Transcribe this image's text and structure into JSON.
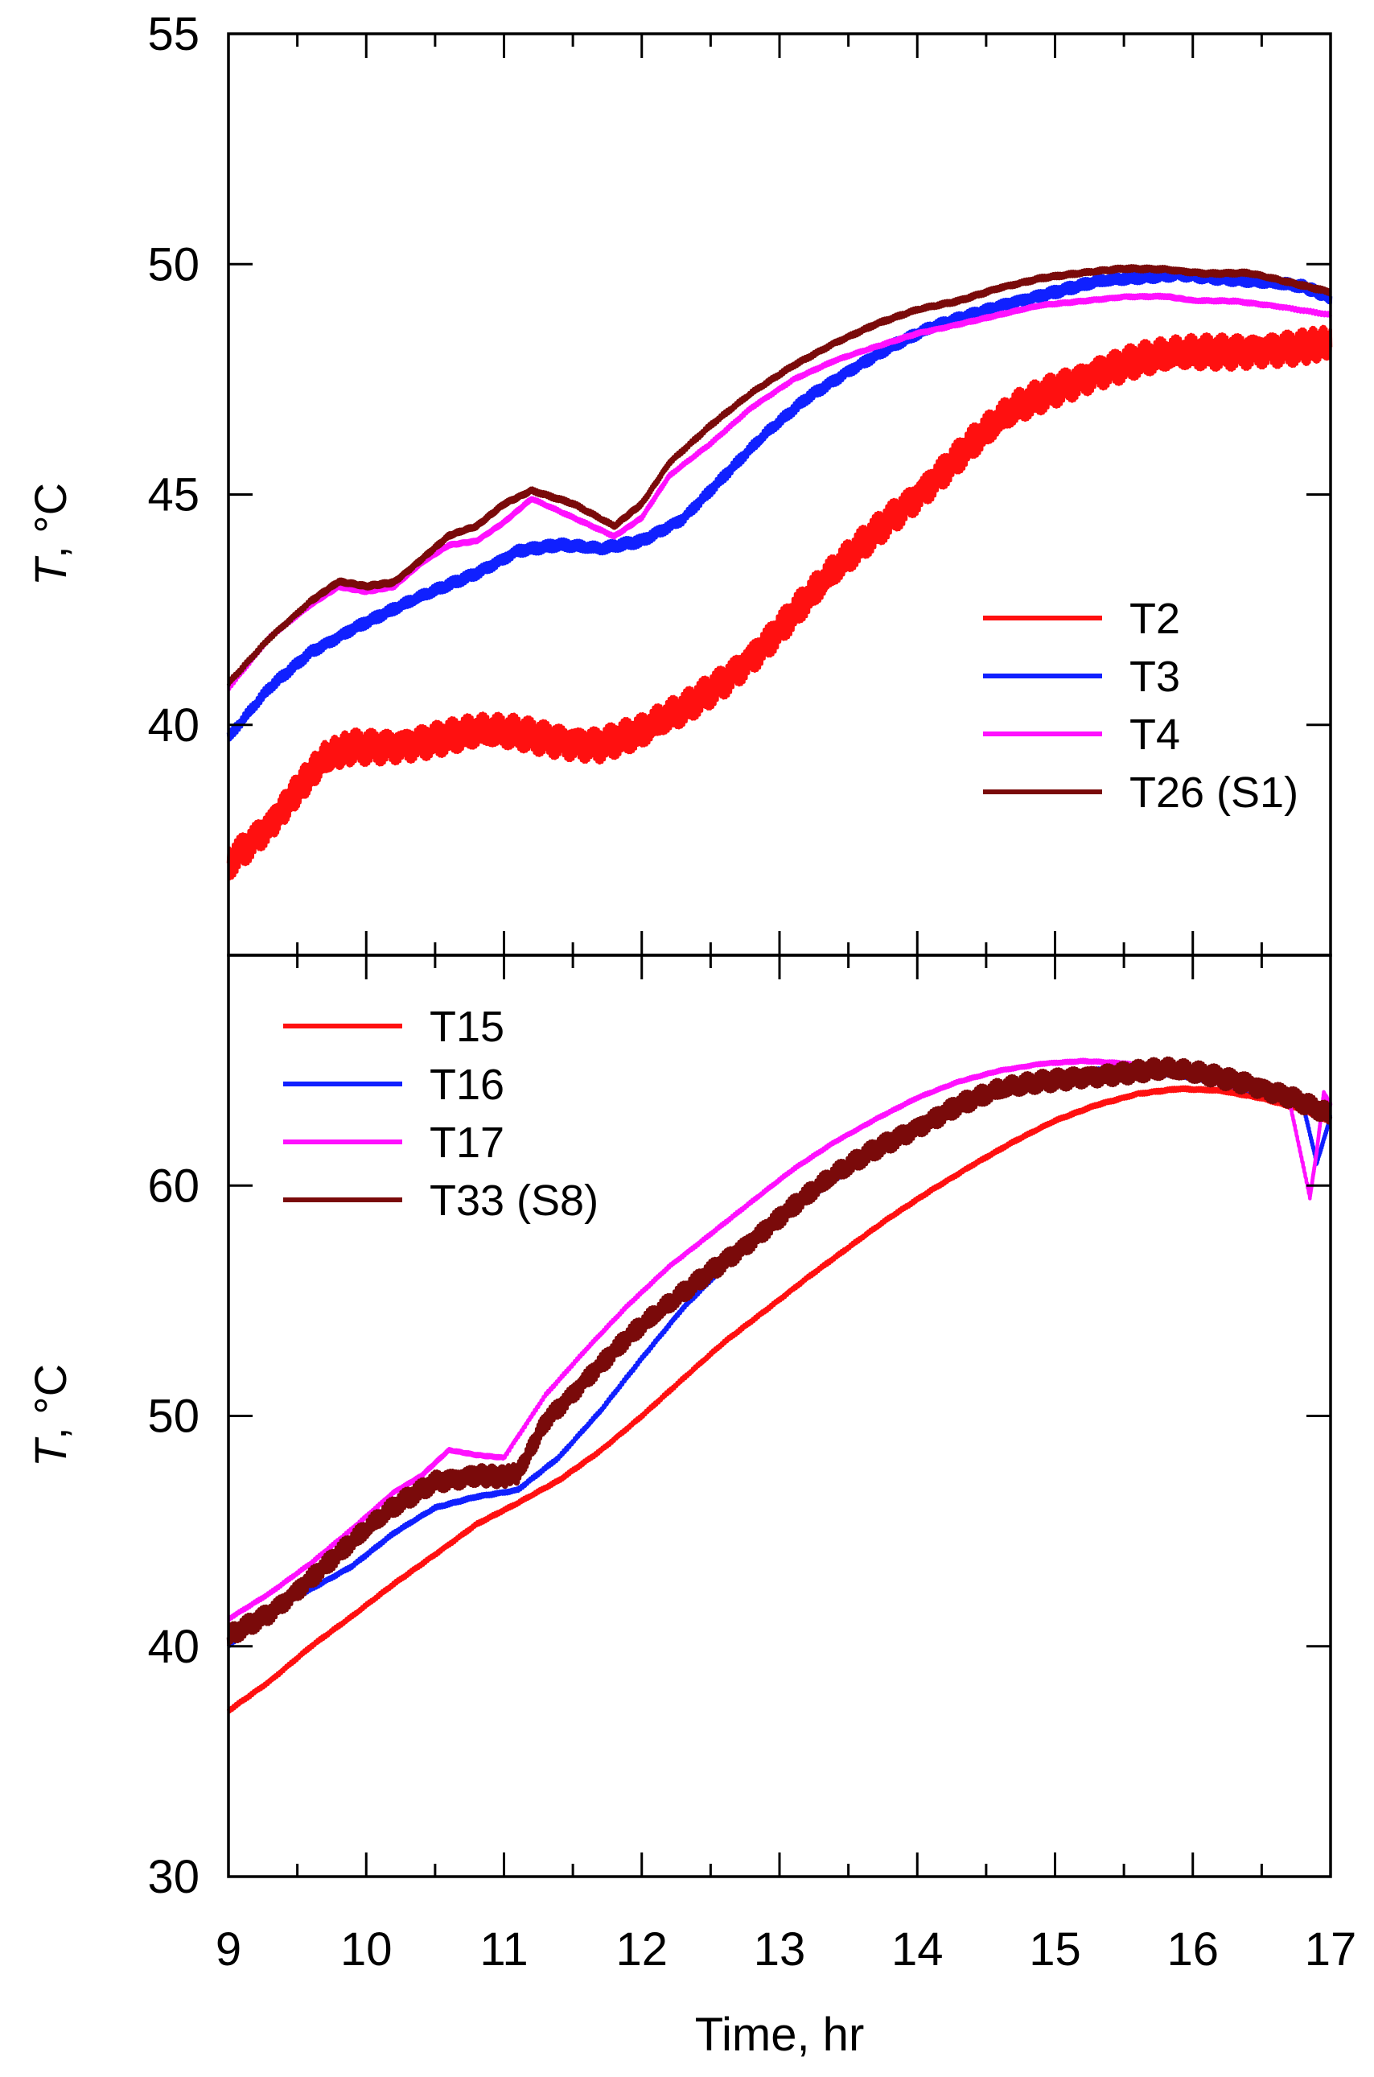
{
  "chart_data": [
    {
      "type": "line",
      "panel": "top",
      "title": "",
      "xlabel": "",
      "ylabel_italic": "T",
      "ylabel_rest": ", °C",
      "xlim": [
        9,
        17
      ],
      "ylim": [
        35,
        55
      ],
      "yticks": [
        40,
        45,
        50,
        55
      ],
      "ytick_labels": [
        "40",
        "45",
        "50",
        "55"
      ],
      "legend_position": "lower-right",
      "series": [
        {
          "name": "T2",
          "color": "#ff1010",
          "noise": 0.45,
          "x": [
            9.0,
            9.3,
            9.5,
            9.7,
            9.9,
            10.2,
            10.5,
            10.8,
            11.1,
            11.4,
            11.7,
            12.0,
            12.3,
            12.6,
            12.9,
            13.2,
            13.5,
            13.8,
            14.1,
            14.4,
            14.7,
            15.0,
            15.3,
            15.6,
            15.9,
            16.2,
            16.5,
            16.8,
            17.0
          ],
          "values": [
            37.0,
            37.9,
            38.6,
            39.2,
            39.5,
            39.6,
            39.7,
            39.8,
            39.8,
            39.7,
            39.6,
            39.8,
            40.3,
            41.0,
            41.8,
            42.7,
            43.6,
            44.5,
            45.3,
            46.1,
            46.8,
            47.3,
            47.7,
            47.9,
            48.0,
            48.1,
            48.2,
            48.2,
            48.2
          ]
        },
        {
          "name": "T3",
          "color": "#1020ff",
          "noise": 0.15,
          "x": [
            9.0,
            9.3,
            9.6,
            9.9,
            10.2,
            10.5,
            10.8,
            11.1,
            11.4,
            11.7,
            12.0,
            12.3,
            12.6,
            12.9,
            13.2,
            13.5,
            13.8,
            14.1,
            14.4,
            14.7,
            15.0,
            15.3,
            15.6,
            15.9,
            16.2,
            16.5,
            16.8,
            17.0
          ],
          "values": [
            39.7,
            40.8,
            41.6,
            42.1,
            42.5,
            42.9,
            43.3,
            43.8,
            43.9,
            43.8,
            44.0,
            44.5,
            45.4,
            46.3,
            47.1,
            47.7,
            48.2,
            48.6,
            48.9,
            49.2,
            49.4,
            49.6,
            49.7,
            49.8,
            49.7,
            49.6,
            49.5,
            49.3
          ]
        },
        {
          "name": "T4",
          "color": "#ff10ff",
          "noise": 0.05,
          "x": [
            9.0,
            9.3,
            9.6,
            9.8,
            10.0,
            10.2,
            10.4,
            10.6,
            10.8,
            11.0,
            11.2,
            11.5,
            11.8,
            12.0,
            12.2,
            12.5,
            12.8,
            13.1,
            13.4,
            13.7,
            14.0,
            14.3,
            14.6,
            14.9,
            15.2,
            15.5,
            15.8,
            16.0,
            16.3,
            16.6,
            17.0
          ],
          "values": [
            40.8,
            41.9,
            42.6,
            43.0,
            42.9,
            43.0,
            43.5,
            43.9,
            44.0,
            44.4,
            44.9,
            44.5,
            44.1,
            44.5,
            45.4,
            46.1,
            46.9,
            47.5,
            47.9,
            48.2,
            48.5,
            48.7,
            48.9,
            49.1,
            49.2,
            49.3,
            49.3,
            49.2,
            49.2,
            49.1,
            48.9
          ]
        },
        {
          "name": "T26 (S1)",
          "color": "#7a0a0a",
          "noise": 0.07,
          "x": [
            9.0,
            9.3,
            9.6,
            9.8,
            10.0,
            10.2,
            10.4,
            10.6,
            10.8,
            11.0,
            11.2,
            11.5,
            11.8,
            12.0,
            12.2,
            12.5,
            12.8,
            13.1,
            13.4,
            13.7,
            14.0,
            14.3,
            14.6,
            14.9,
            15.2,
            15.5,
            15.8,
            16.1,
            16.4,
            16.7,
            17.0
          ],
          "values": [
            40.9,
            41.9,
            42.7,
            43.1,
            43.0,
            43.1,
            43.6,
            44.1,
            44.3,
            44.8,
            45.1,
            44.8,
            44.3,
            44.8,
            45.7,
            46.5,
            47.2,
            47.8,
            48.3,
            48.7,
            49.0,
            49.2,
            49.5,
            49.7,
            49.8,
            49.9,
            49.9,
            49.8,
            49.8,
            49.6,
            49.4
          ]
        }
      ]
    },
    {
      "type": "line",
      "panel": "bottom",
      "title": "",
      "xlabel": "Time, hr",
      "ylabel_italic": "T",
      "ylabel_rest": ", °C",
      "xlim": [
        9,
        17
      ],
      "ylim": [
        30,
        70
      ],
      "xticks": [
        9,
        10,
        11,
        12,
        13,
        14,
        15,
        16,
        17
      ],
      "xtick_labels": [
        "9",
        "10",
        "11",
        "12",
        "13",
        "14",
        "15",
        "16",
        "17"
      ],
      "yticks": [
        30,
        40,
        50,
        60
      ],
      "ytick_labels": [
        "30",
        "40",
        "50",
        "60"
      ],
      "legend_position": "top-left",
      "series": [
        {
          "name": "T15",
          "color": "#ff1010",
          "noise": 0.1,
          "x": [
            9.0,
            9.3,
            9.6,
            9.9,
            10.2,
            10.5,
            10.8,
            11.1,
            11.4,
            11.7,
            12.0,
            12.3,
            12.6,
            12.9,
            13.2,
            13.5,
            13.8,
            14.1,
            14.4,
            14.7,
            15.0,
            15.3,
            15.6,
            15.9,
            16.2,
            16.5,
            16.8,
            17.0
          ],
          "values": [
            37.2,
            38.5,
            40.0,
            41.3,
            42.7,
            44.0,
            45.3,
            46.2,
            47.2,
            48.5,
            50.0,
            51.6,
            53.2,
            54.6,
            56.0,
            57.3,
            58.6,
            59.8,
            60.9,
            61.9,
            62.8,
            63.5,
            64.0,
            64.2,
            64.1,
            63.8,
            63.3,
            62.8
          ]
        },
        {
          "name": "T16",
          "color": "#1020ff",
          "noise": 0.1,
          "x": [
            9.0,
            9.3,
            9.6,
            9.9,
            10.2,
            10.5,
            10.8,
            11.1,
            11.4,
            11.7,
            12.0,
            12.3,
            12.6,
            12.9,
            13.2,
            13.5,
            13.8,
            14.1,
            14.4,
            14.7,
            15.0,
            15.3,
            15.6,
            15.9,
            16.2,
            16.5,
            16.8,
            16.9,
            17.0
          ],
          "values": [
            40.0,
            41.5,
            42.5,
            43.5,
            44.9,
            46.0,
            46.5,
            46.8,
            48.2,
            50.2,
            52.5,
            54.7,
            56.5,
            58.0,
            59.4,
            60.7,
            61.9,
            62.9,
            63.7,
            64.3,
            64.7,
            65.0,
            65.0,
            64.8,
            64.5,
            64.0,
            63.5,
            61.0,
            63.0
          ]
        },
        {
          "name": "T17",
          "color": "#ff10ff",
          "noise": 0.08,
          "x": [
            9.0,
            9.3,
            9.6,
            9.9,
            10.2,
            10.4,
            10.6,
            10.8,
            11.0,
            11.3,
            11.6,
            11.9,
            12.2,
            12.5,
            12.8,
            13.1,
            13.4,
            13.7,
            14.0,
            14.3,
            14.6,
            14.9,
            15.2,
            15.5,
            15.8,
            16.1,
            16.4,
            16.7,
            16.85,
            16.9,
            16.95,
            17.0
          ],
          "values": [
            41.2,
            42.3,
            43.6,
            45.1,
            46.7,
            47.4,
            48.5,
            48.3,
            48.2,
            50.9,
            52.9,
            54.8,
            56.5,
            57.9,
            59.3,
            60.7,
            61.9,
            62.9,
            63.8,
            64.5,
            65.0,
            65.3,
            65.4,
            65.3,
            65.0,
            64.6,
            64.2,
            63.7,
            59.5,
            61.5,
            64.0,
            63.5
          ]
        },
        {
          "name": "T33 (S8)",
          "color": "#7a0a0a",
          "noise": 0.55,
          "x": [
            9.0,
            9.3,
            9.6,
            9.9,
            10.2,
            10.5,
            10.8,
            11.0,
            11.1,
            11.3,
            11.6,
            11.9,
            12.2,
            12.5,
            12.8,
            13.1,
            13.4,
            13.7,
            14.0,
            14.3,
            14.6,
            14.9,
            15.2,
            15.5,
            15.8,
            16.1,
            16.4,
            16.7,
            17.0
          ],
          "values": [
            40.4,
            41.5,
            43.0,
            44.5,
            46.0,
            47.2,
            47.5,
            47.3,
            47.4,
            49.8,
            51.7,
            53.4,
            54.8,
            56.3,
            57.7,
            59.1,
            60.4,
            61.6,
            62.6,
            63.5,
            64.1,
            64.5,
            64.8,
            64.9,
            65.0,
            64.8,
            64.5,
            63.9,
            63.0
          ]
        }
      ]
    }
  ]
}
